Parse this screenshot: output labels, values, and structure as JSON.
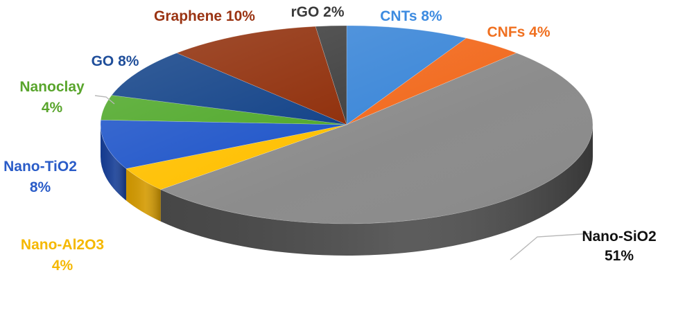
{
  "chart_data": {
    "type": "pie",
    "style": "3d",
    "title": "",
    "slices": [
      {
        "name": "CNTs",
        "value": 8,
        "label": "CNTs 8%",
        "color": "#3C87D8",
        "side": "#2A63A6",
        "label_color": "#3D8BE0",
        "label_lines": [
          "CNTs 8%"
        ]
      },
      {
        "name": "CNFs",
        "value": 4,
        "label": "CNFs 4%",
        "color": "#F26A1E",
        "side": "#C04E10",
        "label_color": "#F07020",
        "label_lines": [
          "CNFs 4%"
        ]
      },
      {
        "name": "Nano-SiO2",
        "value": 51,
        "label": "Nano-SiO2 51%",
        "color": "#8C8C8C",
        "side": "#4A4A4A",
        "label_color": "#111111",
        "label_lines": [
          "Nano-SiO2",
          "51%"
        ]
      },
      {
        "name": "Nano-Al2O3",
        "value": 4,
        "label": "Nano-Al2O3 4%",
        "color": "#FFC000",
        "side": "#D49A00",
        "label_color": "#F5B800",
        "label_lines": [
          "Nano-Al2O3",
          "4%"
        ]
      },
      {
        "name": "Nano-TiO2",
        "value": 8,
        "label": "Nano-TiO2 8%",
        "color": "#1F55C9",
        "side": "#163E96",
        "label_color": "#2A5CC8",
        "label_lines": [
          "Nano-TiO2",
          "8%"
        ]
      },
      {
        "name": "Nanoclay",
        "value": 4,
        "label": "Nanoclay 4%",
        "color": "#4FA829",
        "side": "#3A7E1E",
        "label_color": "#59A52C",
        "label_lines": [
          "Nanoclay",
          "4%"
        ]
      },
      {
        "name": "GO",
        "value": 8,
        "label": "GO 8%",
        "color": "#0E3F86",
        "side": "#0A2D60",
        "label_color": "#1F4E9A",
        "label_lines": [
          "GO 8%"
        ]
      },
      {
        "name": "Graphene",
        "value": 10,
        "label": "Graphene 10%",
        "color": "#8E2B06",
        "side": "#652004",
        "label_color": "#9A3312",
        "label_lines": [
          "Graphene 10%"
        ]
      },
      {
        "name": "rGO",
        "value": 2,
        "label": "rGO 2%",
        "color": "#3E3E3E",
        "side": "#262626",
        "label_color": "#3A3A3A",
        "label_lines": [
          "rGO 2%"
        ]
      }
    ]
  }
}
